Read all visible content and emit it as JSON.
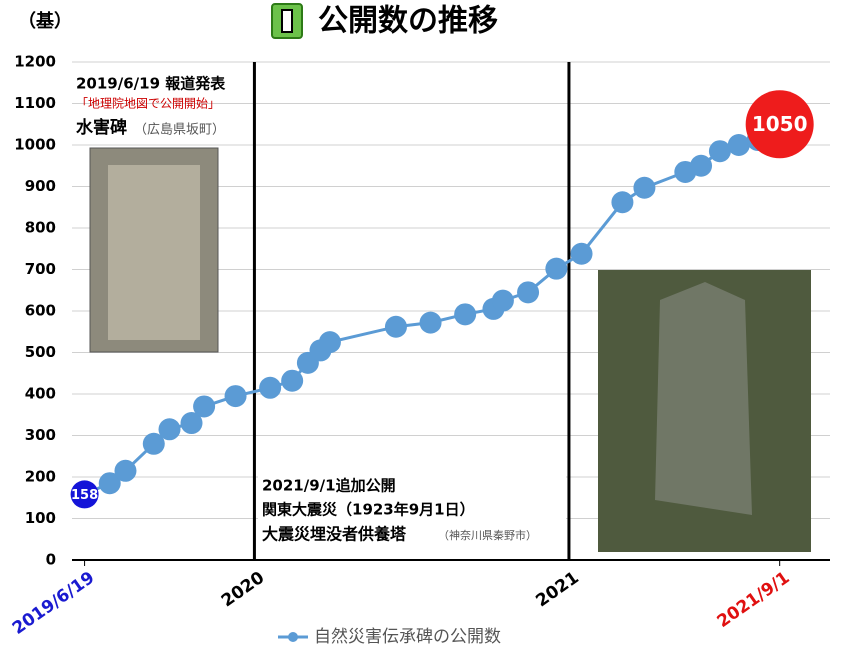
{
  "chart_data": {
    "type": "line",
    "title": "公開数の推移",
    "y_label": "（基）",
    "xlim": [
      2019.42,
      2021.83
    ],
    "xticks": [
      {
        "value": 2019.46,
        "label": "2019/6/19"
      },
      2020,
      2021,
      {
        "value": 2021.67,
        "label": "2021/9/1"
      }
    ],
    "xtick_colors": [
      "#1a1ad0",
      "#000000",
      "#000000",
      "#e01010"
    ],
    "ylim": [
      0,
      1200
    ],
    "yticks": [
      0,
      100,
      200,
      300,
      400,
      500,
      600,
      700,
      800,
      900,
      1000,
      1100,
      1200
    ],
    "grid": true,
    "x": [
      2019.46,
      2019.54,
      2019.59,
      2019.68,
      2019.73,
      2019.8,
      2019.84,
      2019.94,
      2020.05,
      2020.12,
      2020.17,
      2020.21,
      2020.24,
      2020.45,
      2020.56,
      2020.67,
      2020.76,
      2020.79,
      2020.87,
      2020.96,
      2021.04,
      2021.17,
      2021.24,
      2021.37,
      2021.42,
      2021.48,
      2021.54,
      2021.6,
      2021.67
    ],
    "series": [
      {
        "name": "自然災害伝承碑の公開数",
        "color": "#5b9bd5",
        "values": [
          158,
          185,
          215,
          280,
          315,
          330,
          370,
          395,
          415,
          432,
          475,
          505,
          525,
          562,
          572,
          592,
          605,
          625,
          645,
          702,
          738,
          862,
          897,
          935,
          950,
          985,
          1000,
          1012,
          1050
        ],
        "value_labels": [
          "158",
          null,
          null,
          null,
          null,
          null,
          null,
          null,
          null,
          null,
          null,
          null,
          null,
          null,
          null,
          null,
          null,
          null,
          null,
          null,
          null,
          null,
          null,
          null,
          null,
          null,
          null,
          null,
          "1050"
        ]
      }
    ],
    "first_color": "#1414d8",
    "last_color": "#ee1c1c",
    "annotations": [
      {
        "lines": [
          "2019/6/19 報道発表",
          "「地理院地図で公開開始」",
          "水害碑",
          "（広島県坂町）"
        ]
      },
      {
        "lines": [
          "2021/9/1追加公開",
          "関東大震災（1923年9月1日）",
          "大震災埋没者供養塔",
          "（神奈川県秦野市）"
        ]
      }
    ]
  }
}
